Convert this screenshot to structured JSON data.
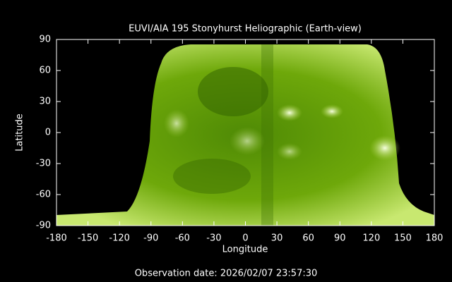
{
  "chart_data": {
    "type": "image",
    "title": "EUVI/AIA 195 Stonyhurst Heliographic (Earth-view)",
    "xlabel": "Longitude",
    "ylabel": "Latitude",
    "xlim": [
      -180,
      180
    ],
    "ylim": [
      -90,
      90
    ],
    "xticks": [
      -180,
      -150,
      -120,
      -90,
      -60,
      -30,
      0,
      30,
      60,
      90,
      120,
      150,
      180
    ],
    "yticks": [
      -90,
      -60,
      -30,
      0,
      30,
      60,
      90
    ],
    "footer": "Observation date: 2026/02/07 23:57:30"
  }
}
